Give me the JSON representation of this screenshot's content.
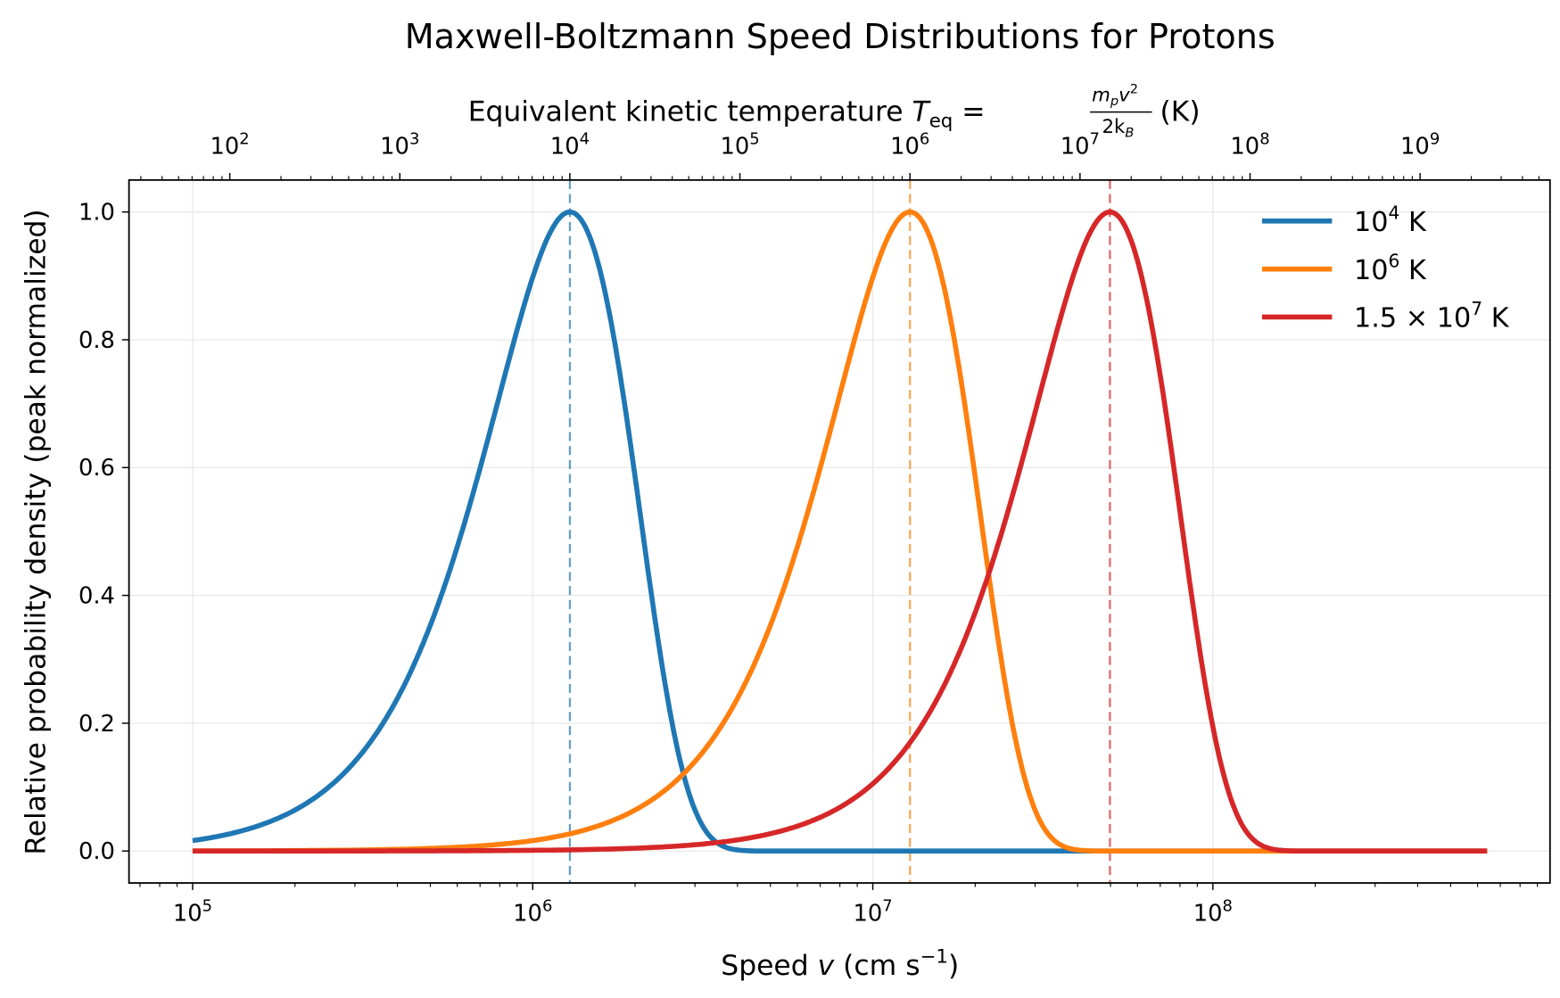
{
  "chart_data": {
    "type": "line",
    "title": "Maxwell-Boltzmann Speed Distributions for Protons",
    "xlabel": {
      "prefix": "Speed ",
      "var": "v",
      "units": " (cm s",
      "exp": "−1",
      "close": ")"
    },
    "ylabel": "Relative probability density (peak normalized)",
    "xscale": "log",
    "xlim": [
      65000,
      980000000
    ],
    "ylim": [
      -0.05,
      1.05
    ],
    "grid": true,
    "legend_position": "top-right",
    "x_ticks": [
      {
        "base": "10",
        "exp": "5"
      },
      {
        "base": "10",
        "exp": "6"
      },
      {
        "base": "10",
        "exp": "7"
      },
      {
        "base": "10",
        "exp": "8"
      }
    ],
    "y_ticks": [
      "0.0",
      "0.2",
      "0.4",
      "0.6",
      "0.8",
      "1.0"
    ],
    "top_axis": {
      "label": {
        "prefix": "Equivalent kinetic temperature ",
        "T": "T",
        "sub": "eq",
        "eq": " = ",
        "num_m": "m",
        "num_p": "p",
        "num_v": "v",
        "num_exp": "2",
        "den": "2k",
        "den_sub": "B",
        "units": " (K)"
      },
      "scale": "log",
      "ticks": [
        {
          "base": "10",
          "exp": "2"
        },
        {
          "base": "10",
          "exp": "3"
        },
        {
          "base": "10",
          "exp": "4"
        },
        {
          "base": "10",
          "exp": "5"
        },
        {
          "base": "10",
          "exp": "6"
        },
        {
          "base": "10",
          "exp": "7"
        },
        {
          "base": "10",
          "exp": "8"
        },
        {
          "base": "10",
          "exp": "9"
        }
      ]
    },
    "x_range_curves": [
      100000,
      640000000
    ],
    "series": [
      {
        "name": "10^4 K",
        "label_pre": "",
        "label_base": "10",
        "label_exp": "4",
        "label_post": " K",
        "temperature_K": 10000,
        "peak_speed": 1286000,
        "color": "#1f77b4"
      },
      {
        "name": "10^6 K",
        "label_pre": "",
        "label_base": "10",
        "label_exp": "6",
        "label_post": " K",
        "temperature_K": 1000000,
        "peak_speed": 12860000,
        "color": "#ff7f0e"
      },
      {
        "name": "1.5 x 10^7 K",
        "label_pre": "1.5 × ",
        "label_base": "10",
        "label_exp": "7",
        "label_post": " K",
        "temperature_K": 15000000,
        "peak_speed": 49800000,
        "color": "#d62728"
      }
    ]
  }
}
